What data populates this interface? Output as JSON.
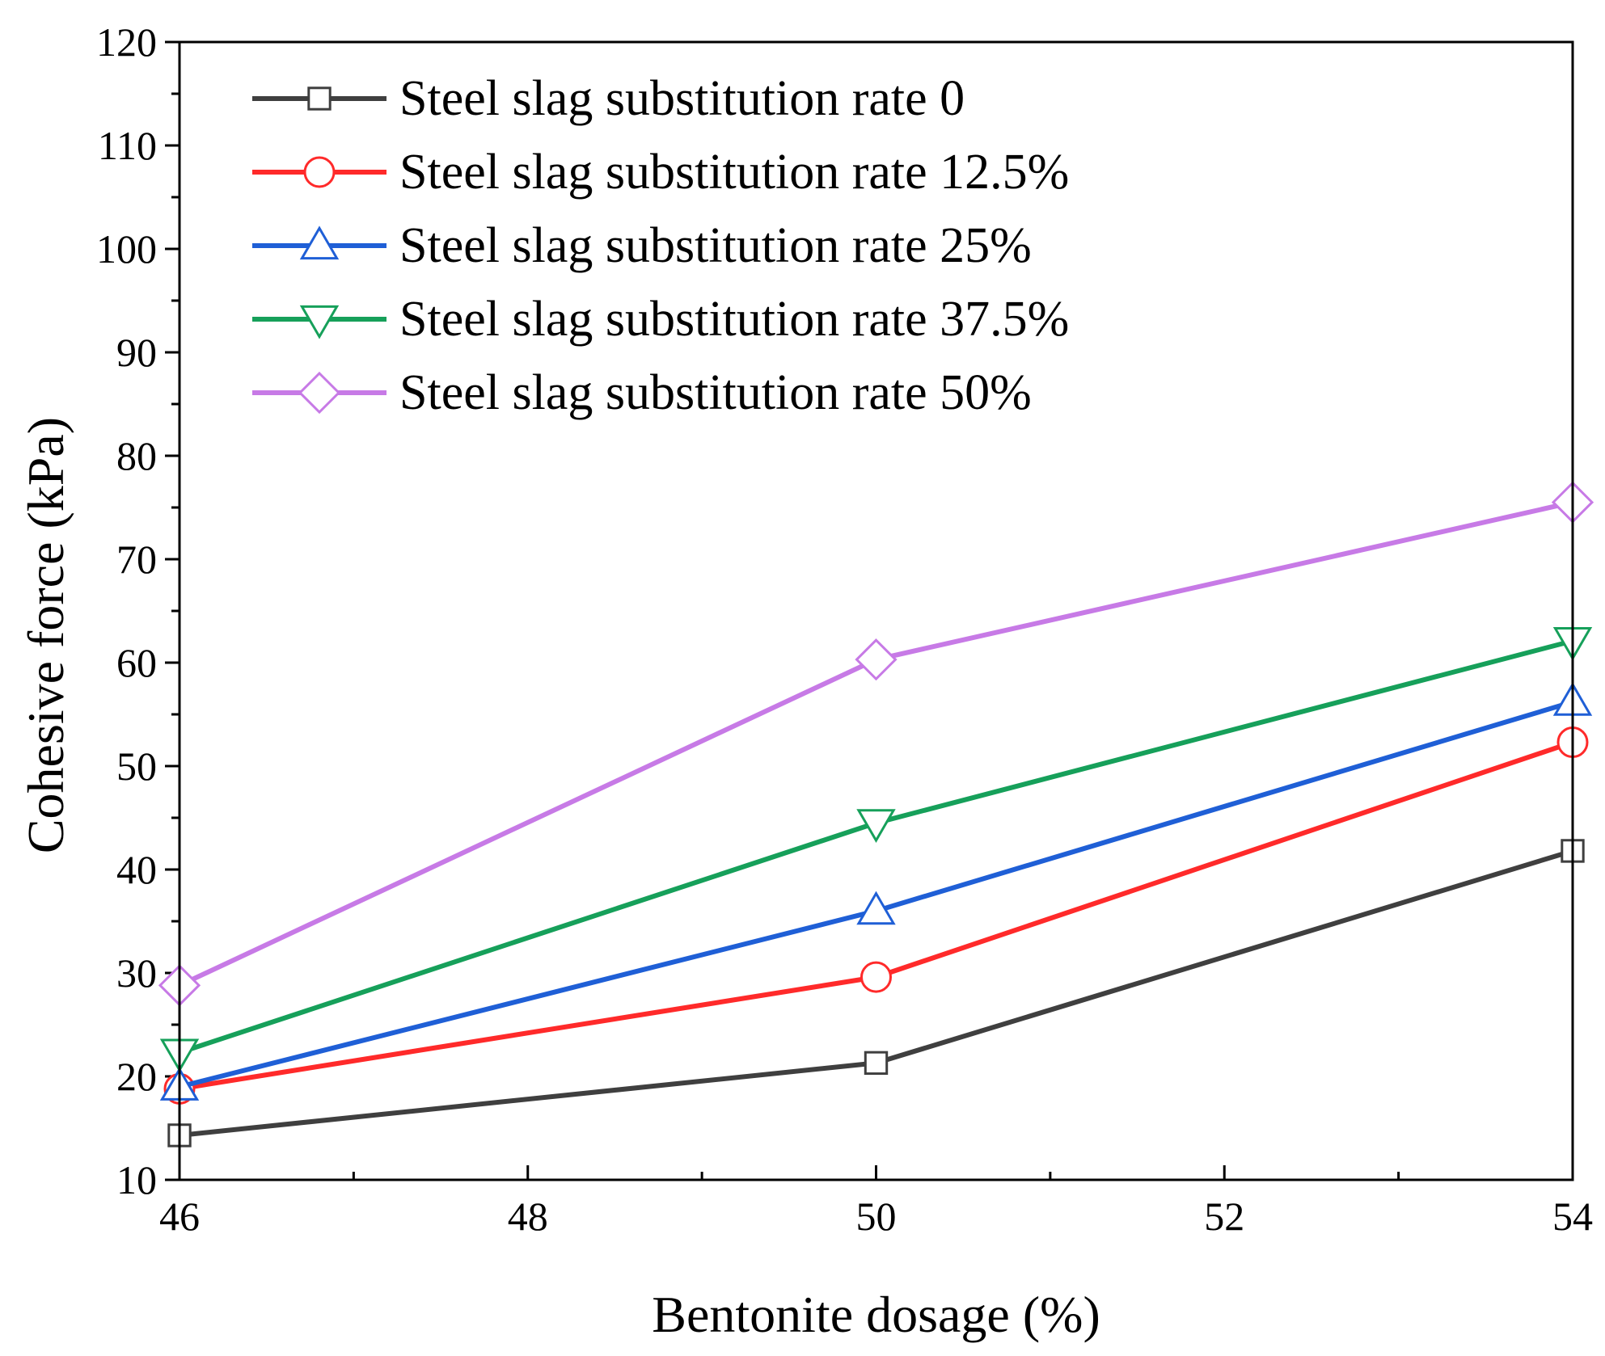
{
  "chart_data": {
    "type": "line",
    "xlabel": "Bentonite dosage (%)",
    "ylabel": "Cohesive force (kPa)",
    "xlim": [
      46,
      54
    ],
    "ylim": [
      10,
      120
    ],
    "x_ticks": [
      46,
      48,
      50,
      52,
      54
    ],
    "y_ticks": [
      10,
      20,
      30,
      40,
      50,
      60,
      70,
      80,
      90,
      100,
      110,
      120
    ],
    "legend_position": "top-left",
    "x": [
      46,
      50,
      54
    ],
    "series": [
      {
        "name": "Steel slag substitution rate 0",
        "values": [
          14.3,
          21.3,
          41.8
        ],
        "color": "#3f3f3f",
        "marker": "square"
      },
      {
        "name": "Steel slag substitution rate 12.5%",
        "values": [
          18.8,
          29.6,
          52.3
        ],
        "color": "#ff2a2a",
        "marker": "circle"
      },
      {
        "name": "Steel slag substitution rate 25%",
        "values": [
          19.0,
          36.0,
          56.2
        ],
        "color": "#1f5fd6",
        "marker": "triangle-up"
      },
      {
        "name": "Steel slag substitution rate 37.5%",
        "values": [
          22.3,
          44.5,
          62.1
        ],
        "color": "#16a05a",
        "marker": "triangle-down"
      },
      {
        "name": "Steel slag substitution rate 50%",
        "values": [
          28.8,
          60.3,
          75.5
        ],
        "color": "#c77ae6",
        "marker": "diamond"
      }
    ]
  }
}
